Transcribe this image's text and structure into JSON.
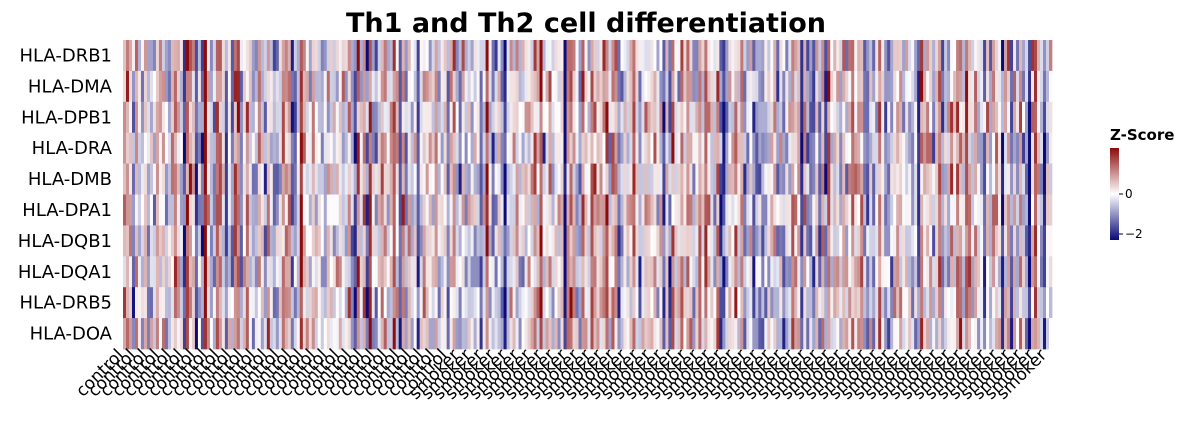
{
  "chart_data": {
    "type": "heatmap",
    "title": "Th1 and Th2 cell differentiation",
    "rows": [
      "HLA-DRB1",
      "HLA-DMA",
      "HLA-DPB1",
      "HLA-DRA",
      "HLA-DMB",
      "HLA-DPA1",
      "HLA-DQB1",
      "HLA-DQA1",
      "HLA-DRB5",
      "HLA-DOA"
    ],
    "groups": [
      {
        "label": "control",
        "count": 110
      },
      {
        "label": "smoker",
        "count": 200
      }
    ],
    "value_range": [
      -2.3,
      2.3
    ],
    "legend": {
      "title": "Z-Score",
      "ticks": [
        {
          "value": 0,
          "label": "0"
        },
        {
          "value": -2,
          "label": "−2"
        }
      ],
      "placement": "right"
    },
    "colors": {
      "low": "#0a0a78",
      "mid": "#ffffff",
      "high": "#8c0a0a"
    }
  }
}
